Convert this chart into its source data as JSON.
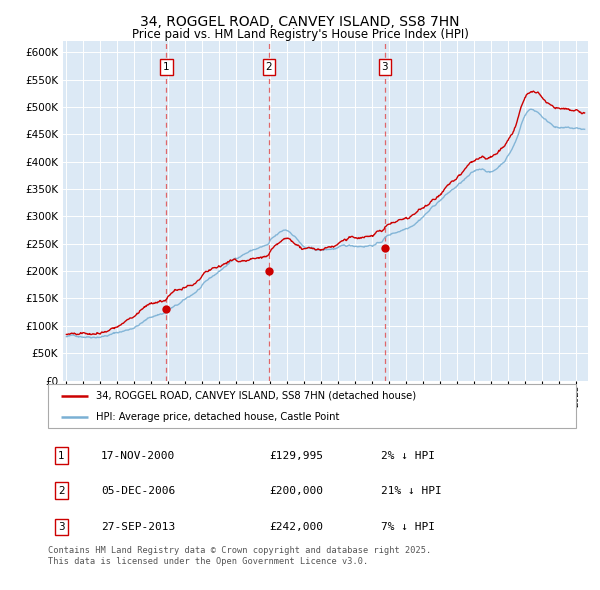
{
  "title": "34, ROGGEL ROAD, CANVEY ISLAND, SS8 7HN",
  "subtitle": "Price paid vs. HM Land Registry's House Price Index (HPI)",
  "bg_color": "#dce9f5",
  "hpi_color": "#7ab0d4",
  "price_color": "#cc0000",
  "vline_color": "#e05050",
  "sale_marker_color": "#cc0000",
  "ylim": [
    0,
    620000
  ],
  "yticks": [
    0,
    50000,
    100000,
    150000,
    200000,
    250000,
    300000,
    350000,
    400000,
    450000,
    500000,
    550000,
    600000
  ],
  "xlim_start": 1994.8,
  "xlim_end": 2025.7,
  "sales": [
    {
      "date_num": 2000.88,
      "price": 129995,
      "label": "1"
    },
    {
      "date_num": 2006.92,
      "price": 200000,
      "label": "2"
    },
    {
      "date_num": 2013.74,
      "price": 242000,
      "label": "3"
    }
  ],
  "legend_entries": [
    {
      "label": "34, ROGGEL ROAD, CANVEY ISLAND, SS8 7HN (detached house)",
      "color": "#cc0000"
    },
    {
      "label": "HPI: Average price, detached house, Castle Point",
      "color": "#7ab0d4"
    }
  ],
  "sale_table": [
    {
      "num": "1",
      "date": "17-NOV-2000",
      "price": "£129,995",
      "pct": "2% ↓ HPI"
    },
    {
      "num": "2",
      "date": "05-DEC-2006",
      "price": "£200,000",
      "pct": "21% ↓ HPI"
    },
    {
      "num": "3",
      "date": "27-SEP-2013",
      "price": "£242,000",
      "pct": "7% ↓ HPI"
    }
  ],
  "footer": "Contains HM Land Registry data © Crown copyright and database right 2025.\nThis data is licensed under the Open Government Licence v3.0."
}
